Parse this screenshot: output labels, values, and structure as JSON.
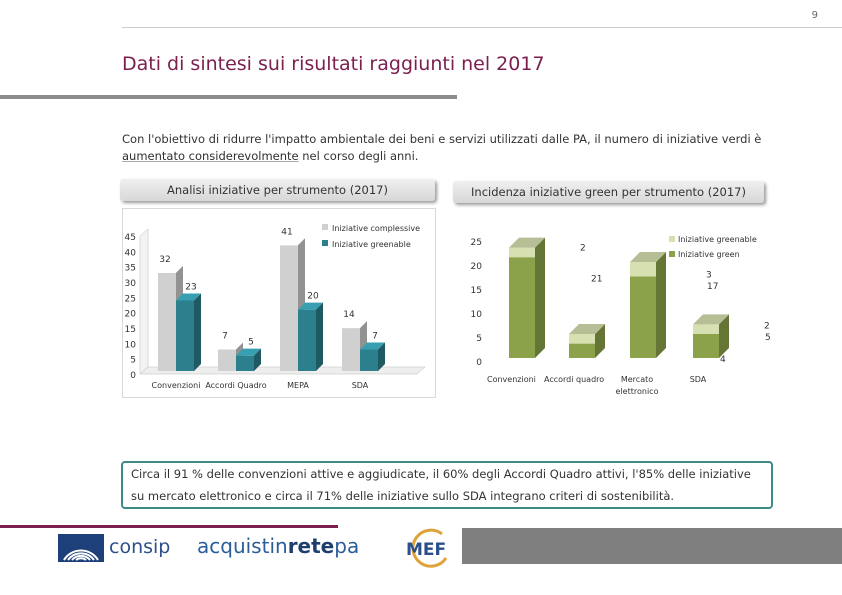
{
  "page_number": "9",
  "title": "Dati di sintesi sui risultati raggiunti nel 2017",
  "intro": {
    "line1": "Con l'obiettivo di ridurre l'impatto ambientale dei beni e servizi utilizzati dalle PA, il numero di iniziative verdi è",
    "line2_em": "aumentato considerevolmente",
    "line2_rest": " nel corso degli anni."
  },
  "left_chart_label": "Analisi iniziative per strumento  (2017)",
  "right_chart_label": "Incidenza iniziative green per strumento (2017)",
  "callout": "Circa il 91 % delle convenzioni attive e aggiudicate, il 60% degli Accordi Quadro attivi, l'85% delle iniziative su mercato elettronico e circa il 71% delle iniziative sullo SDA integrano criteri di sostenibilità.",
  "footer": {
    "consip": "consip",
    "acq_a": "acquistin",
    "acq_b": "rete",
    "acq_c": "pa",
    "mef": "MEF"
  },
  "colors": {
    "complessive": "#d0d0d0",
    "greenable": "#2c7f8c",
    "green": "#8ba24a",
    "green_top": "#d6e0b0",
    "title": "#7a1f4e"
  },
  "chart_data": [
    {
      "type": "bar",
      "title": "Analisi iniziative per strumento  (2017)",
      "categories": [
        "Convenzioni",
        "Accordi Quadro",
        "MEPA",
        "SDA"
      ],
      "series": [
        {
          "name": "Iniziative complessive",
          "values": [
            32,
            7,
            41,
            14
          ]
        },
        {
          "name": "Iniziative greenable",
          "values": [
            23,
            5,
            20,
            7
          ]
        }
      ],
      "yticks": [
        "0",
        "5",
        "10",
        "15",
        "20",
        "25",
        "30",
        "35",
        "40",
        "45"
      ],
      "ylim": [
        0,
        45
      ]
    },
    {
      "type": "bar",
      "stacked": true,
      "title": "Incidenza iniziative green per strumento (2017)",
      "categories": [
        "Convenzioni",
        "Accordi quadro",
        "Mercato elettronico",
        "SDA"
      ],
      "series": [
        {
          "name": "Iniziative green",
          "values": [
            21,
            3,
            17,
            5
          ]
        },
        {
          "name": "Iniziative greenable",
          "values": [
            2,
            2,
            3,
            2
          ]
        }
      ],
      "data_labels": {
        "green": [
          "21",
          "3",
          "17",
          "5"
        ],
        "greenable": [
          "2",
          "",
          "3",
          "2"
        ],
        "extra": "4"
      },
      "yticks": [
        "0",
        "5",
        "10",
        "15",
        "20",
        "25"
      ],
      "ylim": [
        0,
        25
      ]
    }
  ]
}
